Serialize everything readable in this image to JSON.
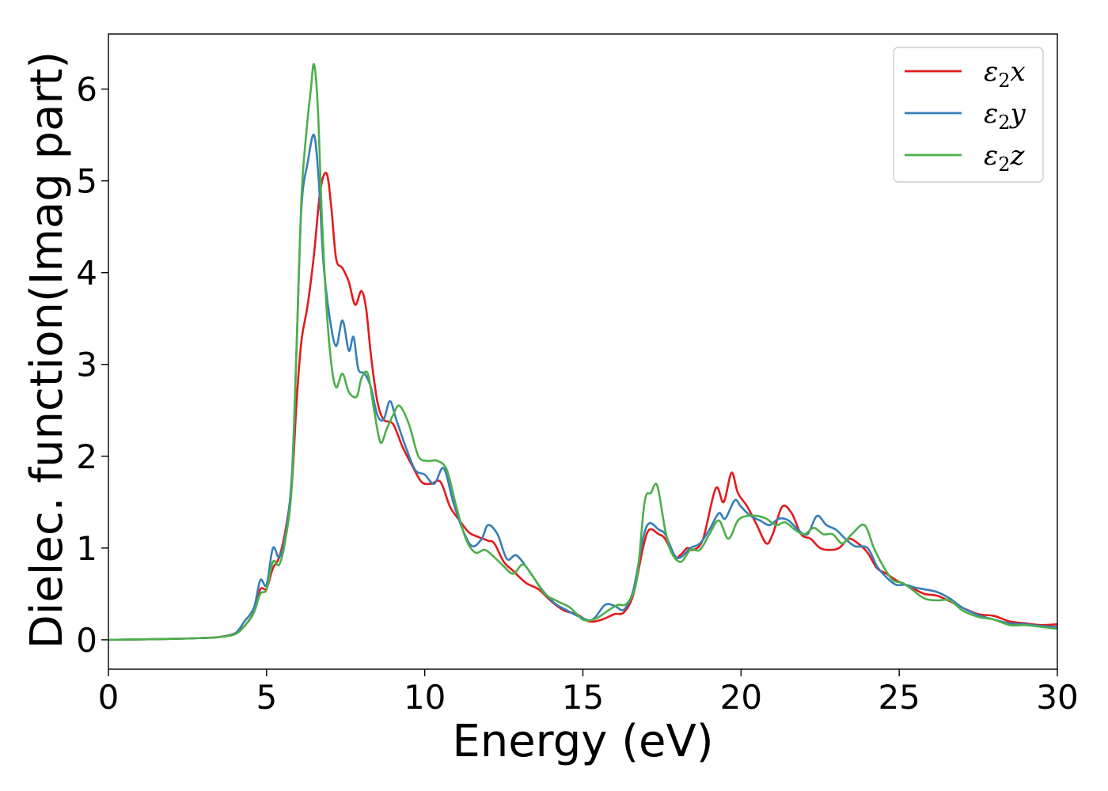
{
  "chart_data": {
    "type": "line",
    "title": "",
    "xlabel": "Energy (eV)",
    "ylabel": "Dielec. function(Imag part)",
    "xlim": [
      0,
      30
    ],
    "ylim": [
      -0.32,
      6.6
    ],
    "xticks": [
      0,
      5,
      10,
      15,
      20,
      25,
      30
    ],
    "yticks": [
      0,
      1,
      2,
      3,
      4,
      5,
      6
    ],
    "grid": false,
    "legend_position": "top-right",
    "series": [
      {
        "name": "ε2x",
        "legend_base": "ε",
        "legend_sub": "2",
        "legend_suffix": "x",
        "color": "#e41a1c",
        "points": [
          [
            0,
            0.0
          ],
          [
            2,
            0.01
          ],
          [
            3,
            0.02
          ],
          [
            3.5,
            0.03
          ],
          [
            4,
            0.07
          ],
          [
            4.3,
            0.15
          ],
          [
            4.6,
            0.3
          ],
          [
            4.8,
            0.55
          ],
          [
            5.0,
            0.56
          ],
          [
            5.2,
            0.78
          ],
          [
            5.4,
            0.9
          ],
          [
            5.6,
            1.2
          ],
          [
            5.8,
            1.7
          ],
          [
            5.95,
            2.6
          ],
          [
            6.1,
            3.25
          ],
          [
            6.3,
            3.65
          ],
          [
            6.5,
            4.2
          ],
          [
            6.7,
            4.9
          ],
          [
            6.9,
            5.08
          ],
          [
            7.05,
            4.7
          ],
          [
            7.2,
            4.15
          ],
          [
            7.4,
            4.05
          ],
          [
            7.6,
            3.9
          ],
          [
            7.8,
            3.65
          ],
          [
            8.0,
            3.8
          ],
          [
            8.15,
            3.6
          ],
          [
            8.3,
            3.1
          ],
          [
            8.5,
            2.6
          ],
          [
            8.7,
            2.4
          ],
          [
            9.0,
            2.35
          ],
          [
            9.3,
            2.1
          ],
          [
            9.6,
            1.9
          ],
          [
            9.9,
            1.72
          ],
          [
            10.2,
            1.7
          ],
          [
            10.5,
            1.72
          ],
          [
            10.8,
            1.45
          ],
          [
            11.1,
            1.3
          ],
          [
            11.4,
            1.17
          ],
          [
            11.7,
            1.12
          ],
          [
            12.0,
            1.08
          ],
          [
            12.2,
            1.05
          ],
          [
            12.5,
            0.85
          ],
          [
            12.8,
            0.75
          ],
          [
            13.2,
            0.62
          ],
          [
            13.6,
            0.55
          ],
          [
            14.0,
            0.42
          ],
          [
            14.4,
            0.32
          ],
          [
            14.8,
            0.28
          ],
          [
            15.2,
            0.2
          ],
          [
            15.6,
            0.22
          ],
          [
            16.0,
            0.28
          ],
          [
            16.3,
            0.3
          ],
          [
            16.6,
            0.5
          ],
          [
            16.9,
            1.0
          ],
          [
            17.1,
            1.2
          ],
          [
            17.4,
            1.15
          ],
          [
            17.6,
            1.1
          ],
          [
            17.9,
            0.9
          ],
          [
            18.1,
            0.93
          ],
          [
            18.3,
            1.0
          ],
          [
            18.5,
            0.98
          ],
          [
            18.8,
            1.1
          ],
          [
            19.2,
            1.65
          ],
          [
            19.45,
            1.5
          ],
          [
            19.7,
            1.82
          ],
          [
            19.9,
            1.6
          ],
          [
            20.2,
            1.45
          ],
          [
            20.5,
            1.25
          ],
          [
            20.8,
            1.05
          ],
          [
            21.0,
            1.15
          ],
          [
            21.3,
            1.45
          ],
          [
            21.6,
            1.38
          ],
          [
            21.9,
            1.15
          ],
          [
            22.2,
            1.1
          ],
          [
            22.5,
            1.0
          ],
          [
            22.8,
            0.98
          ],
          [
            23.1,
            1.0
          ],
          [
            23.4,
            1.1
          ],
          [
            23.7,
            1.05
          ],
          [
            24.0,
            0.95
          ],
          [
            24.3,
            0.78
          ],
          [
            24.6,
            0.72
          ],
          [
            24.9,
            0.65
          ],
          [
            25.2,
            0.6
          ],
          [
            25.5,
            0.55
          ],
          [
            25.8,
            0.5
          ],
          [
            26.2,
            0.48
          ],
          [
            26.6,
            0.42
          ],
          [
            27.0,
            0.35
          ],
          [
            27.5,
            0.28
          ],
          [
            28.0,
            0.26
          ],
          [
            28.5,
            0.2
          ],
          [
            29.0,
            0.18
          ],
          [
            29.5,
            0.16
          ],
          [
            30.0,
            0.17
          ]
        ]
      },
      {
        "name": "ε2y",
        "legend_base": "ε",
        "legend_sub": "2",
        "legend_suffix": "y",
        "color": "#377eb8",
        "points": [
          [
            0,
            0.0
          ],
          [
            2,
            0.01
          ],
          [
            3,
            0.02
          ],
          [
            3.5,
            0.03
          ],
          [
            4,
            0.07
          ],
          [
            4.3,
            0.2
          ],
          [
            4.6,
            0.35
          ],
          [
            4.8,
            0.65
          ],
          [
            5.0,
            0.6
          ],
          [
            5.2,
            1.0
          ],
          [
            5.4,
            0.9
          ],
          [
            5.6,
            1.15
          ],
          [
            5.8,
            1.8
          ],
          [
            5.95,
            3.2
          ],
          [
            6.1,
            4.7
          ],
          [
            6.3,
            5.2
          ],
          [
            6.5,
            5.5
          ],
          [
            6.65,
            5.0
          ],
          [
            6.8,
            4.1
          ],
          [
            7.0,
            3.5
          ],
          [
            7.2,
            3.2
          ],
          [
            7.4,
            3.48
          ],
          [
            7.6,
            3.15
          ],
          [
            7.75,
            3.3
          ],
          [
            7.9,
            2.95
          ],
          [
            8.1,
            2.9
          ],
          [
            8.3,
            2.75
          ],
          [
            8.5,
            2.45
          ],
          [
            8.7,
            2.4
          ],
          [
            8.9,
            2.6
          ],
          [
            9.1,
            2.4
          ],
          [
            9.4,
            2.1
          ],
          [
            9.7,
            1.85
          ],
          [
            10.0,
            1.8
          ],
          [
            10.3,
            1.7
          ],
          [
            10.6,
            1.87
          ],
          [
            10.9,
            1.5
          ],
          [
            11.2,
            1.2
          ],
          [
            11.5,
            1.02
          ],
          [
            11.8,
            1.1
          ],
          [
            12.0,
            1.25
          ],
          [
            12.3,
            1.15
          ],
          [
            12.6,
            0.88
          ],
          [
            12.9,
            0.92
          ],
          [
            13.3,
            0.75
          ],
          [
            13.7,
            0.55
          ],
          [
            14.1,
            0.4
          ],
          [
            14.5,
            0.32
          ],
          [
            14.9,
            0.25
          ],
          [
            15.3,
            0.22
          ],
          [
            15.7,
            0.38
          ],
          [
            16.0,
            0.37
          ],
          [
            16.3,
            0.33
          ],
          [
            16.6,
            0.55
          ],
          [
            16.9,
            1.1
          ],
          [
            17.1,
            1.27
          ],
          [
            17.4,
            1.2
          ],
          [
            17.6,
            1.15
          ],
          [
            17.9,
            0.92
          ],
          [
            18.1,
            0.9
          ],
          [
            18.4,
            1.0
          ],
          [
            18.7,
            1.05
          ],
          [
            19.0,
            1.2
          ],
          [
            19.3,
            1.38
          ],
          [
            19.5,
            1.32
          ],
          [
            19.8,
            1.52
          ],
          [
            20.0,
            1.45
          ],
          [
            20.3,
            1.35
          ],
          [
            20.6,
            1.3
          ],
          [
            20.9,
            1.25
          ],
          [
            21.2,
            1.32
          ],
          [
            21.5,
            1.3
          ],
          [
            21.8,
            1.2
          ],
          [
            22.1,
            1.15
          ],
          [
            22.4,
            1.35
          ],
          [
            22.7,
            1.25
          ],
          [
            23.0,
            1.2
          ],
          [
            23.3,
            1.1
          ],
          [
            23.6,
            1.02
          ],
          [
            24.0,
            1.0
          ],
          [
            24.3,
            0.8
          ],
          [
            24.6,
            0.68
          ],
          [
            24.9,
            0.6
          ],
          [
            25.2,
            0.6
          ],
          [
            25.5,
            0.57
          ],
          [
            25.8,
            0.55
          ],
          [
            26.2,
            0.52
          ],
          [
            26.6,
            0.45
          ],
          [
            27.0,
            0.35
          ],
          [
            27.5,
            0.27
          ],
          [
            28.0,
            0.22
          ],
          [
            28.5,
            0.18
          ],
          [
            29.0,
            0.17
          ],
          [
            29.5,
            0.15
          ],
          [
            30.0,
            0.14
          ]
        ]
      },
      {
        "name": "ε2z",
        "legend_base": "ε",
        "legend_sub": "2",
        "legend_suffix": "z",
        "color": "#4daf4a",
        "points": [
          [
            0,
            0.0
          ],
          [
            2,
            0.01
          ],
          [
            3,
            0.02
          ],
          [
            3.5,
            0.03
          ],
          [
            4,
            0.06
          ],
          [
            4.3,
            0.15
          ],
          [
            4.6,
            0.3
          ],
          [
            4.8,
            0.5
          ],
          [
            5.0,
            0.55
          ],
          [
            5.2,
            0.85
          ],
          [
            5.4,
            0.82
          ],
          [
            5.6,
            1.1
          ],
          [
            5.8,
            1.7
          ],
          [
            5.95,
            3.2
          ],
          [
            6.1,
            4.8
          ],
          [
            6.25,
            5.5
          ],
          [
            6.4,
            6.0
          ],
          [
            6.5,
            6.27
          ],
          [
            6.62,
            5.8
          ],
          [
            6.75,
            4.6
          ],
          [
            6.9,
            3.6
          ],
          [
            7.05,
            3.0
          ],
          [
            7.2,
            2.75
          ],
          [
            7.4,
            2.9
          ],
          [
            7.6,
            2.7
          ],
          [
            7.85,
            2.65
          ],
          [
            8.0,
            2.85
          ],
          [
            8.2,
            2.9
          ],
          [
            8.4,
            2.5
          ],
          [
            8.6,
            2.15
          ],
          [
            8.8,
            2.3
          ],
          [
            9.0,
            2.45
          ],
          [
            9.2,
            2.55
          ],
          [
            9.5,
            2.35
          ],
          [
            9.8,
            2.0
          ],
          [
            10.1,
            1.95
          ],
          [
            10.4,
            1.95
          ],
          [
            10.7,
            1.85
          ],
          [
            11.0,
            1.45
          ],
          [
            11.3,
            1.1
          ],
          [
            11.6,
            0.95
          ],
          [
            11.9,
            0.98
          ],
          [
            12.2,
            0.9
          ],
          [
            12.5,
            0.8
          ],
          [
            12.8,
            0.72
          ],
          [
            13.1,
            0.82
          ],
          [
            13.4,
            0.7
          ],
          [
            13.8,
            0.5
          ],
          [
            14.2,
            0.42
          ],
          [
            14.6,
            0.35
          ],
          [
            15.0,
            0.22
          ],
          [
            15.4,
            0.23
          ],
          [
            15.8,
            0.32
          ],
          [
            16.1,
            0.38
          ],
          [
            16.4,
            0.4
          ],
          [
            16.7,
            0.65
          ],
          [
            16.95,
            1.5
          ],
          [
            17.15,
            1.6
          ],
          [
            17.35,
            1.68
          ],
          [
            17.6,
            1.2
          ],
          [
            17.8,
            0.95
          ],
          [
            18.1,
            0.85
          ],
          [
            18.4,
            0.98
          ],
          [
            18.7,
            0.98
          ],
          [
            19.0,
            1.15
          ],
          [
            19.3,
            1.3
          ],
          [
            19.6,
            1.1
          ],
          [
            19.9,
            1.3
          ],
          [
            20.2,
            1.35
          ],
          [
            20.5,
            1.35
          ],
          [
            20.8,
            1.32
          ],
          [
            21.1,
            1.25
          ],
          [
            21.4,
            1.28
          ],
          [
            21.7,
            1.2
          ],
          [
            22.0,
            1.15
          ],
          [
            22.3,
            1.22
          ],
          [
            22.6,
            1.15
          ],
          [
            22.9,
            1.15
          ],
          [
            23.2,
            1.05
          ],
          [
            23.5,
            1.15
          ],
          [
            23.9,
            1.25
          ],
          [
            24.2,
            1.0
          ],
          [
            24.5,
            0.8
          ],
          [
            24.8,
            0.65
          ],
          [
            25.1,
            0.62
          ],
          [
            25.4,
            0.55
          ],
          [
            25.8,
            0.45
          ],
          [
            26.2,
            0.43
          ],
          [
            26.6,
            0.43
          ],
          [
            27.0,
            0.32
          ],
          [
            27.5,
            0.25
          ],
          [
            28.0,
            0.22
          ],
          [
            28.5,
            0.16
          ],
          [
            29.0,
            0.16
          ],
          [
            29.5,
            0.14
          ],
          [
            30.0,
            0.12
          ]
        ]
      }
    ]
  }
}
